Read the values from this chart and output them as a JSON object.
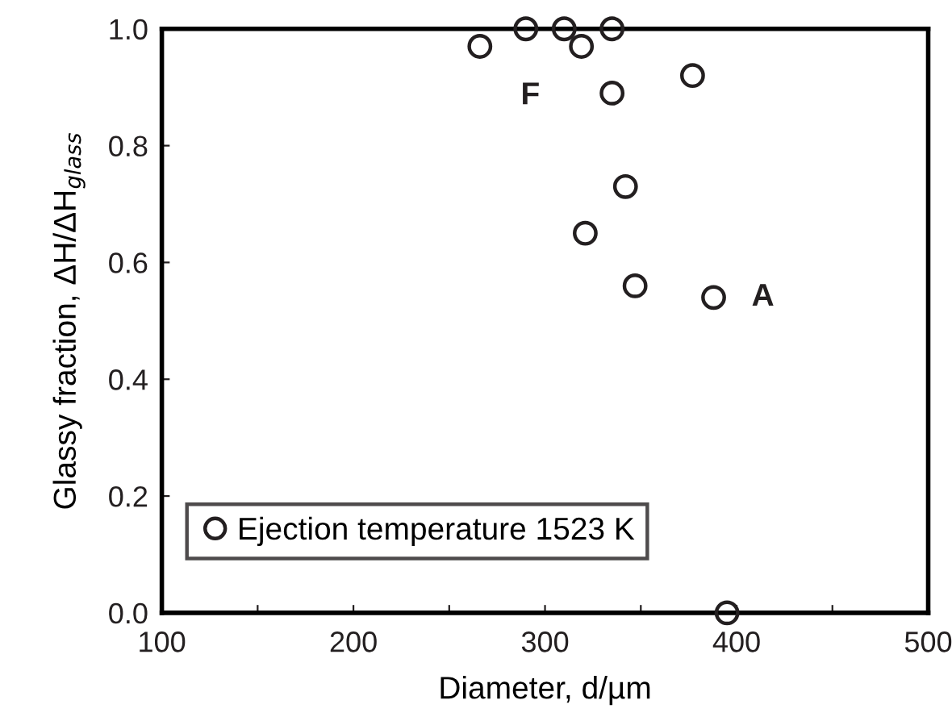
{
  "chart_data": {
    "type": "scatter",
    "xlabel": "Diameter, d/µm",
    "ylabel": "Glassy fraction, ΔH/ΔH$_{glass}$",
    "xlim": [
      100,
      500
    ],
    "ylim": [
      0,
      1
    ],
    "xticks": [
      100,
      {
        "value": 150,
        "label": null
      },
      200,
      {
        "value": 250,
        "label": null
      },
      300,
      {
        "value": 350,
        "label": null
      },
      400,
      {
        "value": 450,
        "label": null
      },
      500
    ],
    "yticks": [
      {
        "value": 0,
        "label": "0.0"
      },
      0.2,
      0.4,
      0.6,
      0.8,
      {
        "value": 1,
        "label": "1.0"
      }
    ],
    "marker": "circle",
    "legend": "bottom left",
    "grid": false,
    "series": [
      {
        "name": "Ejection temperature 1523 K",
        "color": "#231f20",
        "x": [
          266,
          290,
          310,
          319,
          335,
          335,
          377,
          342,
          321,
          347,
          388,
          395
        ],
        "values": [
          0.97,
          1.0,
          1.0,
          0.97,
          1.0,
          0.89,
          0.92,
          0.73,
          0.65,
          0.56,
          0.54,
          0.0
        ]
      }
    ],
    "annotations": [
      {
        "text": "F",
        "x": 290,
        "y": 1.0
      },
      {
        "text": "A",
        "x": 388,
        "y": 0.54
      }
    ]
  }
}
